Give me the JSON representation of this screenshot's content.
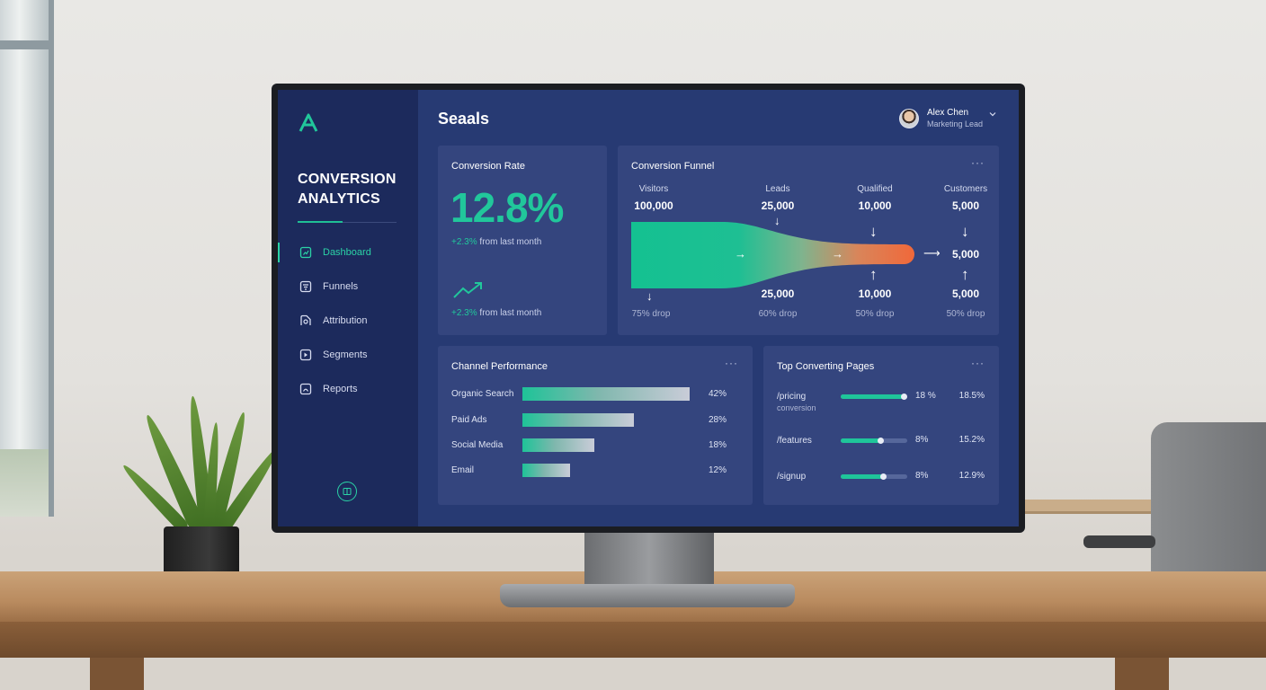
{
  "app": {
    "brand_line1": "CONVERSION",
    "brand_line2": "ANALYTICS",
    "page_title": "Seaals"
  },
  "user": {
    "name": "Alex Chen",
    "role": "Marketing Lead"
  },
  "sidebar": {
    "items": [
      {
        "label": "Dashboard",
        "icon": "dashboard-icon",
        "active": true
      },
      {
        "label": "Funnels",
        "icon": "funnel-icon",
        "active": false
      },
      {
        "label": "Attribution",
        "icon": "attribution-icon",
        "active": false
      },
      {
        "label": "Segments",
        "icon": "segments-icon",
        "active": false
      },
      {
        "label": "Reports",
        "icon": "reports-icon",
        "active": false
      }
    ]
  },
  "conversion_rate": {
    "title": "Conversion Rate",
    "value": "12.8%",
    "delta": "+2.3%",
    "delta_suffix": "from last month",
    "delta2": "+2.3%",
    "delta2_suffix": "from last month"
  },
  "funnel": {
    "title": "Conversion Funnel",
    "more": "···",
    "stages": [
      {
        "label": "Visitors",
        "value": "100,000",
        "lower": "",
        "drop": "75% drop"
      },
      {
        "label": "Leads",
        "value": "25,000",
        "lower": "25,000",
        "drop": "60% drop"
      },
      {
        "label": "Qualified",
        "value": "10,000",
        "lower": "10,000",
        "drop": "50% drop"
      },
      {
        "label": "Customers",
        "value": "5,000",
        "lower": "5,000",
        "drop": "50% drop"
      }
    ],
    "end_value": "5,000"
  },
  "channel": {
    "title": "Channel Performance",
    "more": "···",
    "rows": [
      {
        "name": "Organic Search",
        "value": "42%",
        "pct": 42
      },
      {
        "name": "Paid Ads",
        "value": "28%",
        "pct": 28
      },
      {
        "name": "Social Media",
        "value": "18%",
        "pct": 18
      },
      {
        "name": "Email",
        "value": "12%",
        "pct": 12
      }
    ]
  },
  "top_pages": {
    "title": "Top Converting Pages",
    "more": "···",
    "rows": [
      {
        "page": "/pricing",
        "sub": "conversion",
        "share": "18 %",
        "conv": "18.5%",
        "fill": 0.97
      },
      {
        "page": "/features",
        "sub": "",
        "share": "8%",
        "conv": "15.2%",
        "fill": 0.62
      },
      {
        "page": "/signup",
        "sub": "",
        "share": "8%",
        "conv": "12.9%",
        "fill": 0.66
      }
    ]
  },
  "colors": {
    "accent": "#21c79b",
    "sidebar": "#1c2a5c",
    "panel": "#34457e",
    "funnel_end": "#f0683a"
  }
}
